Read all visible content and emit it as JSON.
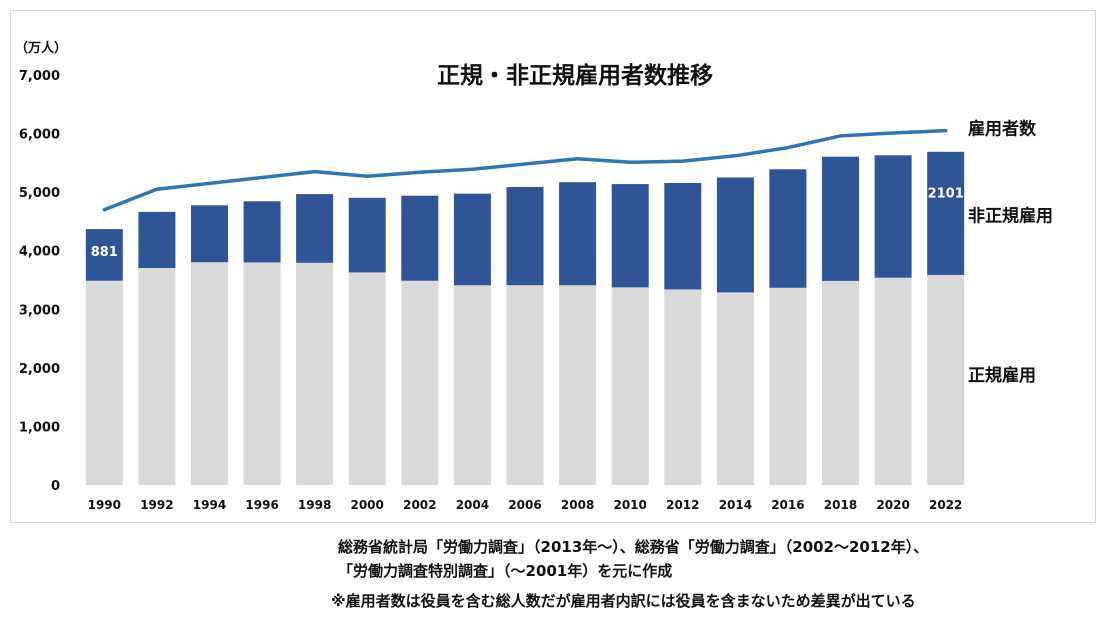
{
  "chart_data": {
    "type": "bar",
    "stacked": true,
    "title": "正規・非正規雇用者数推移",
    "ylabel": "（万人）",
    "xlabel": "",
    "ylim": [
      0,
      7000
    ],
    "y_ticks": [
      0,
      1000,
      2000,
      3000,
      4000,
      5000,
      6000,
      7000
    ],
    "y_tick_labels": [
      "0",
      "1,000",
      "2,000",
      "3,000",
      "4,000",
      "5,000",
      "6,000",
      "7,000"
    ],
    "grid": false,
    "legend": "right",
    "categories": [
      "1990",
      "1992",
      "1994",
      "1996",
      "1998",
      "2000",
      "2002",
      "2004",
      "2006",
      "2008",
      "2010",
      "2012",
      "2014",
      "2016",
      "2018",
      "2020",
      "2022"
    ],
    "series": [
      {
        "name": "正規雇用",
        "type": "bar",
        "color": "#D9D9D9",
        "values": [
          3488,
          3705,
          3805,
          3800,
          3794,
          3630,
          3489,
          3410,
          3411,
          3410,
          3374,
          3340,
          3288,
          3367,
          3485,
          3539,
          3588
        ]
      },
      {
        "name": "非正規雇用",
        "type": "bar",
        "color": "#2F5597",
        "values": [
          881,
          958,
          971,
          1043,
          1173,
          1273,
          1451,
          1564,
          1677,
          1760,
          1763,
          1816,
          1962,
          2023,
          2120,
          2090,
          2101
        ]
      },
      {
        "name": "雇用者数",
        "type": "line",
        "color": "#2E75B6",
        "values": [
          4700,
          5050,
          5150,
          5250,
          5350,
          5270,
          5340,
          5390,
          5480,
          5570,
          5510,
          5530,
          5620,
          5760,
          5960,
          6010,
          6050
        ]
      }
    ],
    "data_labels": [
      {
        "series_index": 1,
        "category_index": 0,
        "text": "881"
      },
      {
        "series_index": 1,
        "category_index": 16,
        "text": "2101"
      }
    ]
  },
  "notes": {
    "source_line1": "総務省統計局「労働力調査」（2013年～）、総務省「労働力調査」（2002～2012年）、",
    "source_line2": "「労働力調査特別調査」（～2001年）を元に作成",
    "disclaimer": "※雇用者数は役員を含む総人数だが雇用者内訳には役員を含まないため差異が出ている"
  }
}
